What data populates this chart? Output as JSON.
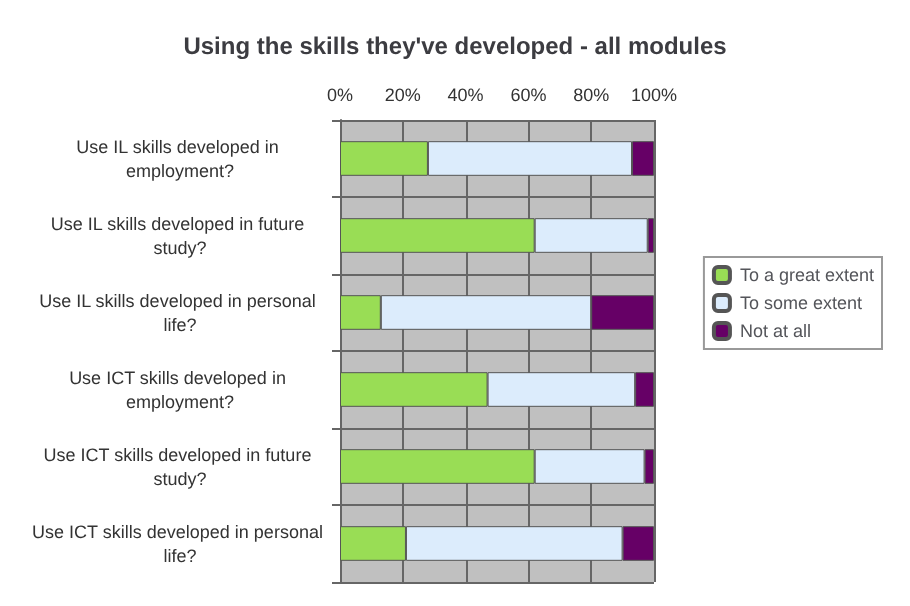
{
  "chart_data": {
    "type": "bar",
    "title": "Using the skills they've developed - all modules",
    "orientation": "horizontal",
    "stacked": true,
    "categories": [
      "Use IL skills developed in employment?",
      "Use IL skills developed in future study?",
      "Use IL skills developed in personal life?",
      "Use ICT skills developed in employment?",
      "Use ICT skills developed in future study?",
      "Use ICT skills developed in personal life?"
    ],
    "series": [
      {
        "name": "To a great extent",
        "color": "#99dd55",
        "values": [
          28,
          62,
          13,
          47,
          62,
          21
        ]
      },
      {
        "name": "To some extent",
        "color": "#dcecfc",
        "values": [
          65,
          36,
          67,
          47,
          35,
          69
        ]
      },
      {
        "name": "Not at all",
        "color": "#660066",
        "values": [
          7,
          2,
          20,
          6,
          3,
          10
        ]
      }
    ],
    "xlim": [
      0,
      100
    ],
    "xticks": [
      {
        "value": 0,
        "label": "0%"
      },
      {
        "value": 20,
        "label": "20%"
      },
      {
        "value": 40,
        "label": "40%"
      },
      {
        "value": 60,
        "label": "60%"
      },
      {
        "value": 80,
        "label": "80%"
      },
      {
        "value": 100,
        "label": "100%"
      }
    ],
    "grid": true,
    "legend": "right"
  }
}
